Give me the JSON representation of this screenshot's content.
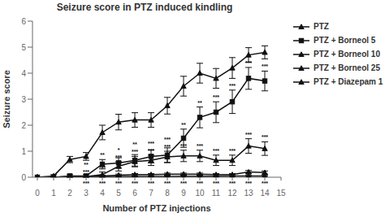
{
  "chart_data": {
    "type": "line",
    "title": "Seizure score in PTZ induced kindling",
    "x_label": "Number of PTZ injections",
    "y_label": "Seizure score",
    "x": [
      0,
      1,
      2,
      3,
      4,
      5,
      6,
      7,
      8,
      9,
      10,
      11,
      12,
      13,
      14
    ],
    "xlim": [
      -0.3,
      15
    ],
    "xticks": [
      0,
      1,
      2,
      3,
      4,
      5,
      6,
      7,
      8,
      9,
      10,
      11,
      12,
      13,
      14,
      15
    ],
    "ylim": [
      0,
      6
    ],
    "yticks": [
      0,
      1,
      2,
      3,
      4,
      5,
      6
    ],
    "grid": false,
    "legend": "right",
    "series": [
      {
        "name": "PTZ",
        "color": "#111111",
        "marker": "triangle",
        "values": [
          0.0,
          0.05,
          0.68,
          0.8,
          1.72,
          2.12,
          2.2,
          2.2,
          2.75,
          3.5,
          4.0,
          3.8,
          4.2,
          4.7,
          4.8
        ],
        "yerr": [
          0.0,
          0.05,
          0.12,
          0.15,
          0.28,
          0.3,
          0.28,
          0.28,
          0.32,
          0.38,
          0.38,
          0.38,
          0.4,
          0.28,
          0.25
        ]
      },
      {
        "name": "PTZ + Borneol 5",
        "color": "#111111",
        "marker": "square",
        "values": [
          0.0,
          0.0,
          0.05,
          0.05,
          0.5,
          0.55,
          0.65,
          0.8,
          0.85,
          1.5,
          2.3,
          2.5,
          2.9,
          3.8,
          3.7
        ],
        "yerr": [
          0.0,
          0.0,
          0.05,
          0.05,
          0.18,
          0.2,
          0.22,
          0.25,
          0.28,
          0.35,
          0.4,
          0.4,
          0.45,
          0.42,
          0.38
        ]
      },
      {
        "name": "PTZ + Borneol 10",
        "color": "#111111",
        "marker": "triangle",
        "values": [
          0.0,
          0.0,
          0.02,
          0.02,
          0.1,
          0.42,
          0.6,
          0.65,
          0.78,
          0.82,
          0.82,
          0.65,
          0.65,
          1.2,
          1.1
        ],
        "yerr": [
          0.0,
          0.0,
          0.02,
          0.02,
          0.1,
          0.18,
          0.2,
          0.2,
          0.22,
          0.22,
          0.22,
          0.2,
          0.2,
          0.28,
          0.26
        ]
      },
      {
        "name": "PTZ + Borneol 25",
        "color": "#111111",
        "marker": "triangle",
        "values": [
          0.0,
          0.0,
          0.01,
          0.01,
          0.05,
          0.08,
          0.1,
          0.1,
          0.12,
          0.12,
          0.12,
          0.1,
          0.1,
          0.2,
          0.18
        ],
        "yerr": [
          0.0,
          0.0,
          0.01,
          0.01,
          0.03,
          0.04,
          0.04,
          0.04,
          0.04,
          0.04,
          0.04,
          0.04,
          0.04,
          0.06,
          0.06
        ]
      },
      {
        "name": "PTZ + Diazepam 1",
        "color": "#111111",
        "marker": "triangle",
        "values": [
          0.0,
          0.0,
          0.01,
          0.01,
          0.02,
          0.02,
          0.03,
          0.03,
          0.03,
          0.04,
          0.04,
          0.04,
          0.05,
          0.05,
          0.05
        ],
        "yerr": [
          0.0,
          0.0,
          0.01,
          0.01,
          0.01,
          0.01,
          0.01,
          0.01,
          0.01,
          0.01,
          0.01,
          0.01,
          0.01,
          0.02,
          0.02
        ]
      }
    ],
    "annotations": [
      {
        "series": "PTZ + Borneol 5",
        "x": [
          3,
          4,
          5,
          6,
          7,
          8,
          9,
          10,
          11,
          12,
          13,
          14
        ],
        "labels": [
          "**",
          "**",
          "*",
          "**",
          "***",
          "***",
          "**",
          "**",
          "***",
          "***",
          "***",
          "***"
        ]
      },
      {
        "series": "PTZ + Borneol 10",
        "x": [
          3,
          4,
          5,
          6,
          7,
          8,
          9,
          10,
          11,
          12,
          13,
          14
        ],
        "labels": [
          "***",
          "***",
          "***",
          "***",
          "***",
          "***",
          "***",
          "***",
          "***",
          "***",
          "***",
          "***"
        ]
      },
      {
        "x": [
          3,
          4,
          5,
          6,
          7,
          8,
          9,
          10,
          11,
          12,
          13,
          14
        ],
        "labels": [
          "***",
          "***",
          "***",
          "***",
          "***",
          "***",
          "***",
          "***",
          "***",
          "***",
          "***",
          "***"
        ]
      }
    ]
  }
}
